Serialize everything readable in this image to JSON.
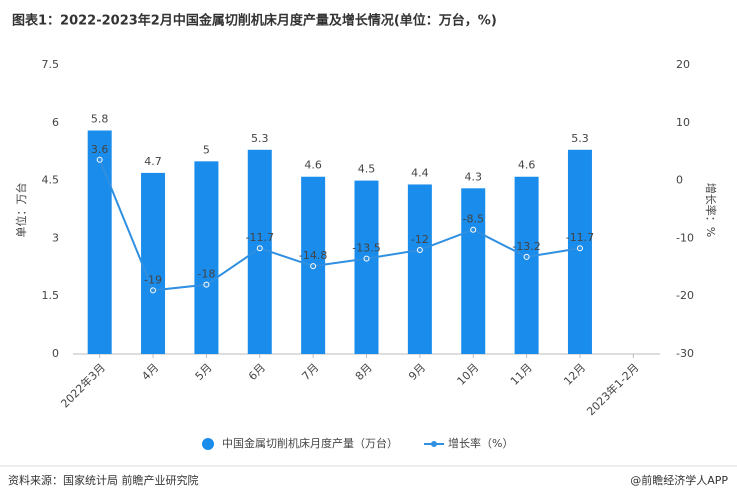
{
  "chart_data": {
    "type": "bar",
    "title": "图表1：2022-2023年2月中国金属切削机床月度产量及增长情况(单位：万台，%)",
    "y_label": "单位：万台",
    "y2_label": "增长率：%",
    "categories": [
      "2022年3月",
      "4月",
      "5月",
      "6月",
      "7月",
      "8月",
      "9月",
      "10月",
      "11月",
      "12月",
      "2023年1-2月"
    ],
    "series": [
      {
        "name": "中国金属切削机床月度产量（万台）",
        "color": "#1a8ceb",
        "type": "bar",
        "values": [
          5.8,
          4.7,
          5,
          5.3,
          4.6,
          4.5,
          4.4,
          4.3,
          4.6,
          5.3,
          null
        ]
      },
      {
        "name": "增长率（%）",
        "color": "#2f8fe0",
        "type": "line",
        "axis": "y2",
        "values": [
          3.6,
          -19,
          -18,
          -11.7,
          -14.8,
          -13.5,
          -12,
          -8.5,
          -13.2,
          -11.7,
          null
        ]
      }
    ],
    "ylim": [
      0,
      7.5
    ],
    "yticks": [
      0,
      1.5,
      3,
      4.5,
      6,
      7.5
    ],
    "y2lim": [
      -30,
      20
    ],
    "y2ticks": [
      -30,
      -20,
      -10,
      0,
      10,
      20
    ],
    "legend": "bottom",
    "source": "资料来源：国家统计局 前瞻产业研究院",
    "brand": "@前瞻经济学人APP"
  }
}
